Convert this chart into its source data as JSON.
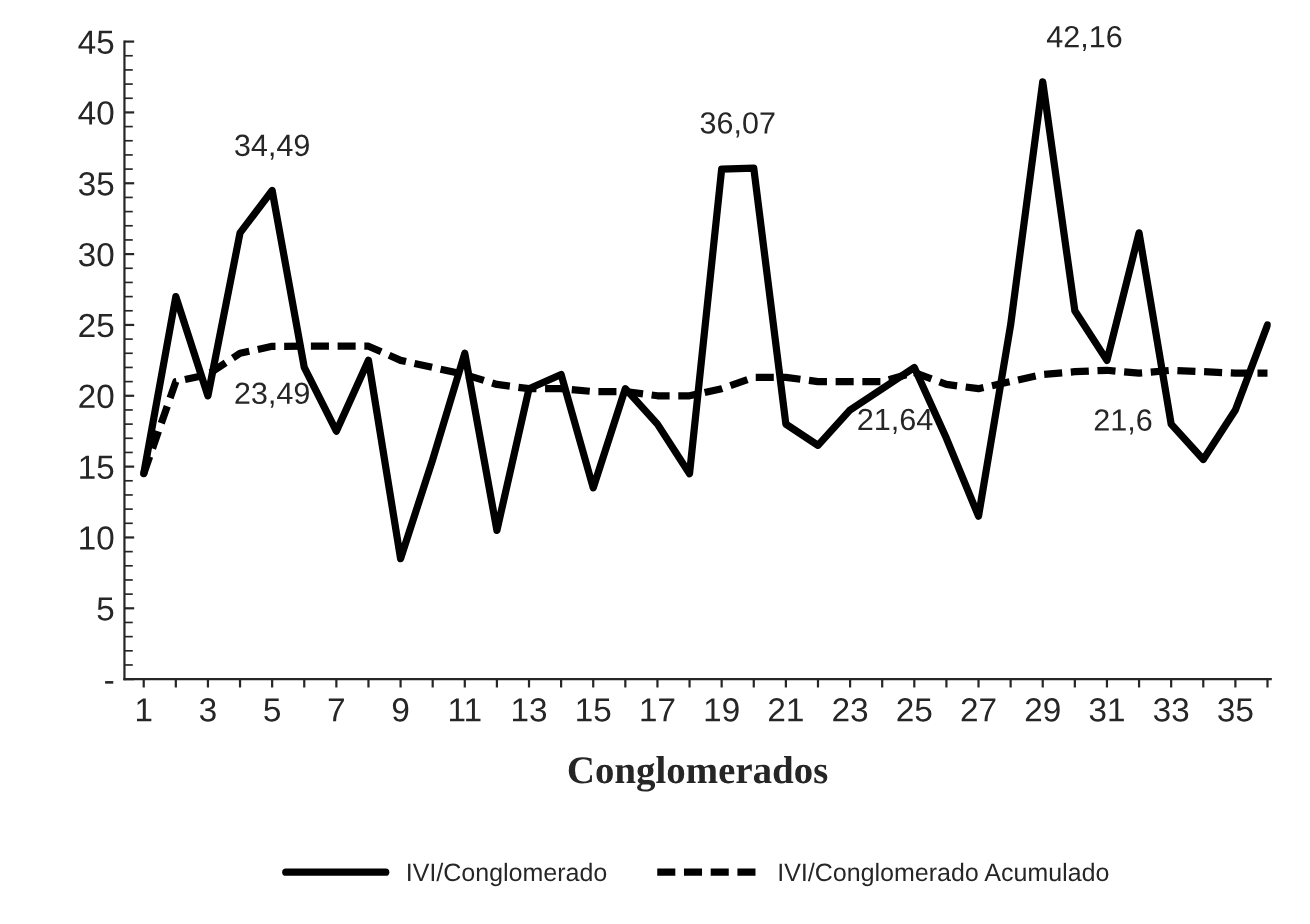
{
  "chart_data": {
    "type": "line",
    "xlabel": "Conglomerados",
    "categories": [
      "1",
      null,
      "3",
      null,
      "5",
      null,
      "7",
      null,
      "9",
      null,
      "11",
      null,
      "13",
      null,
      "15",
      null,
      "17",
      null,
      "19",
      null,
      "21",
      null,
      "23",
      null,
      "25",
      null,
      "27",
      null,
      "29",
      null,
      "31",
      null,
      "33",
      null,
      "35",
      null
    ],
    "series": [
      {
        "name": "IVI/Conglomerado",
        "color": "#000000",
        "line_style": "solid",
        "values": [
          14.5,
          27,
          20,
          31.5,
          34.49,
          22,
          17.5,
          22.5,
          8.5,
          15.5,
          23,
          10.5,
          20.5,
          21.5,
          13.5,
          20.5,
          18,
          14.5,
          36,
          36.07,
          18,
          16.5,
          19,
          20.5,
          22,
          17,
          11.5,
          25,
          42.16,
          26,
          22.5,
          31.5,
          18,
          15.5,
          19,
          25
        ]
      },
      {
        "name": "IVI/Conglomerado Acumulado",
        "color": "#000000",
        "line_style": "dashed",
        "values": [
          14.5,
          21,
          21.5,
          23,
          23.49,
          23.5,
          23.5,
          23.5,
          22.5,
          22,
          21.5,
          20.8,
          20.5,
          20.5,
          20.3,
          20.3,
          20,
          20,
          20.5,
          21.3,
          21.3,
          21,
          21,
          21,
          21.64,
          20.8,
          20.5,
          21,
          21.5,
          21.7,
          21.8,
          21.6,
          21.8,
          21.7,
          21.6,
          21.6
        ]
      }
    ],
    "annotations": [
      {
        "text": "34,49",
        "x": "5",
        "y": 34.49
      },
      {
        "text": "36,07",
        "x": "19",
        "y": 36.07
      },
      {
        "text": "42,16",
        "x": "29",
        "y": 42.16
      },
      {
        "text": "23,49",
        "x": "5",
        "y": 23.49
      },
      {
        "text": "21,64",
        "x": "25",
        "y": 21.64
      },
      {
        "text": "21,6",
        "x": "31",
        "y": 21.6
      }
    ],
    "ylim": [
      0,
      45
    ],
    "yticks": [
      {
        "value": 0,
        "label": "-"
      },
      5,
      10,
      15,
      20,
      25,
      30,
      35,
      40,
      45
    ],
    "grid": false,
    "legend": "bottom",
    "marker": "none"
  }
}
